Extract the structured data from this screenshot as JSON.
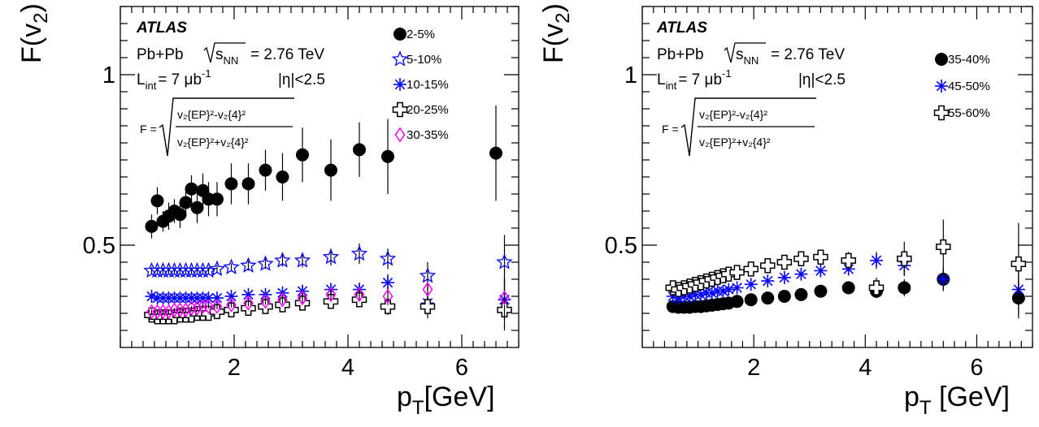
{
  "panels": [
    {
      "ylabel": "F(v",
      "ylabel_sub": "2",
      "ylabel_close": ")",
      "xlabel": "p",
      "xlabel_sub": "T",
      "xlabel_unit": "[GeV]",
      "atlas": "ATLAS",
      "system": "Pb+Pb",
      "sqrt": "s",
      "sqrt_sub": "NN",
      "energy": "= 2.76 TeV",
      "lumi": "L",
      "lumi_sub": "int",
      "lumi_val": "= 7 μb",
      "lumi_sup": "-1",
      "eta": "|η|<2.5",
      "formula_F": "F =",
      "formula_num": "v₂{EP}²-v₂{4}²",
      "formula_den": "v₂{EP}²+v₂{4}²",
      "xticks": [
        "2",
        "4",
        "6"
      ],
      "yticks": [
        "0.5",
        "1"
      ]
    },
    {
      "ylabel": "F(v",
      "ylabel_sub": "2",
      "ylabel_close": ")",
      "xlabel": "p",
      "xlabel_sub": "T",
      "xlabel_unit": " [GeV]",
      "atlas": "ATLAS",
      "system": "Pb+Pb",
      "sqrt": "s",
      "sqrt_sub": "NN",
      "energy": "= 2.76 TeV",
      "lumi": "L",
      "lumi_sub": "int",
      "lumi_val": "= 7 μb",
      "lumi_sup": "-1",
      "eta": "|η|<2.5",
      "formula_F": "F =",
      "formula_num": "v₂{EP}²-v₂{4}²",
      "formula_den": "v₂{EP}²+v₂{4}²",
      "xticks": [
        "2",
        "4",
        "6"
      ],
      "yticks": [
        "0.5",
        "1"
      ]
    }
  ],
  "chart_data": [
    {
      "type": "scatter",
      "xlim": [
        0.0,
        7.0
      ],
      "ylim": [
        0.2,
        1.2
      ],
      "grid": false,
      "legend_placement": "top-right",
      "series": [
        {
          "name": "2-5%",
          "marker": "filled-circle",
          "color": "#000000",
          "x": [
            0.55,
            0.65,
            0.75,
            0.85,
            0.95,
            1.05,
            1.15,
            1.25,
            1.35,
            1.45,
            1.55,
            1.7,
            1.95,
            2.25,
            2.55,
            2.85,
            3.2,
            3.7,
            4.2,
            4.7,
            6.6
          ],
          "y": [
            0.555,
            0.63,
            0.57,
            0.585,
            0.6,
            0.59,
            0.625,
            0.665,
            0.61,
            0.66,
            0.635,
            0.635,
            0.68,
            0.68,
            0.72,
            0.7,
            0.765,
            0.72,
            0.78,
            0.76,
            0.77
          ],
          "err": [
            0.035,
            0.04,
            0.03,
            0.04,
            0.035,
            0.04,
            0.04,
            0.04,
            0.045,
            0.05,
            0.05,
            0.05,
            0.06,
            0.06,
            0.06,
            0.07,
            0.08,
            0.09,
            0.08,
            0.11,
            0.14
          ]
        },
        {
          "name": "5-10%",
          "marker": "open-star",
          "color": "#0000ff",
          "x": [
            0.55,
            0.65,
            0.75,
            0.85,
            0.95,
            1.05,
            1.15,
            1.25,
            1.35,
            1.45,
            1.55,
            1.7,
            1.95,
            2.25,
            2.55,
            2.85,
            3.2,
            3.7,
            4.2,
            4.7,
            5.4,
            6.75
          ],
          "y": [
            0.425,
            0.425,
            0.425,
            0.425,
            0.425,
            0.425,
            0.425,
            0.425,
            0.425,
            0.425,
            0.425,
            0.43,
            0.435,
            0.44,
            0.445,
            0.455,
            0.455,
            0.465,
            0.475,
            0.46,
            0.41,
            0.45
          ],
          "err": [
            0.01,
            0.01,
            0.01,
            0.01,
            0.01,
            0.01,
            0.01,
            0.01,
            0.01,
            0.01,
            0.01,
            0.012,
            0.012,
            0.015,
            0.015,
            0.018,
            0.02,
            0.025,
            0.03,
            0.03,
            0.04,
            0.08
          ]
        },
        {
          "name": "10-15%",
          "marker": "asterisk",
          "color": "#0000ff",
          "x": [
            0.55,
            0.65,
            0.75,
            0.85,
            0.95,
            1.05,
            1.15,
            1.25,
            1.35,
            1.45,
            1.55,
            1.7,
            1.95,
            2.25,
            2.55,
            2.85,
            3.2,
            3.7,
            4.2,
            4.7,
            5.4,
            6.75
          ],
          "y": [
            0.35,
            0.345,
            0.345,
            0.345,
            0.345,
            0.345,
            0.345,
            0.345,
            0.345,
            0.345,
            0.345,
            0.345,
            0.35,
            0.355,
            0.355,
            0.36,
            0.365,
            0.37,
            0.37,
            0.39,
            0.33,
            0.34
          ],
          "err": [
            0.008,
            0.008,
            0.008,
            0.008,
            0.008,
            0.008,
            0.008,
            0.008,
            0.008,
            0.008,
            0.008,
            0.008,
            0.01,
            0.01,
            0.012,
            0.012,
            0.015,
            0.018,
            0.02,
            0.025,
            0.03,
            0.06
          ]
        },
        {
          "name": "20-25%",
          "marker": "open-cross",
          "color": "#000000",
          "x": [
            0.55,
            0.65,
            0.75,
            0.85,
            0.95,
            1.05,
            1.15,
            1.25,
            1.35,
            1.45,
            1.55,
            1.7,
            1.95,
            2.25,
            2.55,
            2.85,
            3.2,
            3.7,
            4.2,
            4.7,
            5.4,
            6.75
          ],
          "y": [
            0.295,
            0.29,
            0.29,
            0.29,
            0.29,
            0.295,
            0.295,
            0.295,
            0.3,
            0.3,
            0.3,
            0.305,
            0.31,
            0.315,
            0.32,
            0.325,
            0.33,
            0.335,
            0.34,
            0.32,
            0.32,
            0.31
          ],
          "err": [
            0.008,
            0.008,
            0.008,
            0.008,
            0.008,
            0.008,
            0.008,
            0.008,
            0.008,
            0.008,
            0.008,
            0.008,
            0.01,
            0.01,
            0.012,
            0.012,
            0.015,
            0.018,
            0.02,
            0.025,
            0.035,
            0.06
          ]
        },
        {
          "name": "30-35%",
          "marker": "open-diamond",
          "color": "#ff00ff",
          "x": [
            0.55,
            0.65,
            0.75,
            0.85,
            0.95,
            1.05,
            1.15,
            1.25,
            1.35,
            1.45,
            1.55,
            1.7,
            1.95,
            2.25,
            2.55,
            2.85,
            3.2,
            3.7,
            4.2,
            4.7,
            5.4,
            6.75
          ],
          "y": [
            0.305,
            0.305,
            0.305,
            0.305,
            0.31,
            0.31,
            0.31,
            0.315,
            0.315,
            0.32,
            0.32,
            0.32,
            0.325,
            0.33,
            0.335,
            0.34,
            0.345,
            0.355,
            0.355,
            0.35,
            0.37,
            0.345
          ],
          "err": [
            0.006,
            0.006,
            0.006,
            0.006,
            0.006,
            0.006,
            0.006,
            0.006,
            0.006,
            0.006,
            0.006,
            0.008,
            0.008,
            0.01,
            0.01,
            0.012,
            0.015,
            0.015,
            0.02,
            0.025,
            0.03,
            0.06
          ]
        }
      ]
    },
    {
      "type": "scatter",
      "xlim": [
        0.0,
        7.0
      ],
      "ylim": [
        0.2,
        1.2
      ],
      "grid": false,
      "legend_placement": "top-right",
      "series": [
        {
          "name": "35-40%",
          "marker": "filled-circle",
          "color": "#000000",
          "x": [
            0.55,
            0.65,
            0.75,
            0.85,
            0.95,
            1.05,
            1.15,
            1.25,
            1.35,
            1.45,
            1.55,
            1.7,
            1.95,
            2.25,
            2.55,
            2.85,
            3.2,
            3.7,
            4.2,
            4.7,
            5.4,
            6.75
          ],
          "y": [
            0.32,
            0.318,
            0.318,
            0.318,
            0.32,
            0.32,
            0.322,
            0.324,
            0.326,
            0.328,
            0.33,
            0.335,
            0.34,
            0.345,
            0.35,
            0.355,
            0.365,
            0.375,
            0.365,
            0.375,
            0.4,
            0.345
          ],
          "err": [
            0.005,
            0.005,
            0.005,
            0.005,
            0.005,
            0.005,
            0.005,
            0.005,
            0.005,
            0.005,
            0.005,
            0.006,
            0.006,
            0.008,
            0.008,
            0.01,
            0.012,
            0.015,
            0.02,
            0.025,
            0.03,
            0.06
          ]
        },
        {
          "name": "45-50%",
          "marker": "asterisk",
          "color": "#0000ff",
          "x": [
            0.55,
            0.65,
            0.75,
            0.85,
            0.95,
            1.05,
            1.15,
            1.25,
            1.35,
            1.45,
            1.55,
            1.7,
            1.95,
            2.25,
            2.55,
            2.85,
            3.2,
            3.7,
            4.2,
            4.7,
            5.4,
            6.75
          ],
          "y": [
            0.35,
            0.345,
            0.35,
            0.35,
            0.355,
            0.355,
            0.36,
            0.36,
            0.365,
            0.365,
            0.37,
            0.375,
            0.385,
            0.395,
            0.405,
            0.415,
            0.425,
            0.43,
            0.455,
            0.44,
            0.4,
            0.37
          ],
          "err": [
            0.006,
            0.006,
            0.006,
            0.006,
            0.006,
            0.006,
            0.006,
            0.006,
            0.006,
            0.006,
            0.006,
            0.008,
            0.008,
            0.01,
            0.01,
            0.012,
            0.015,
            0.018,
            0.025,
            0.03,
            0.035,
            0.07
          ]
        },
        {
          "name": "55-60%",
          "marker": "open-cross",
          "color": "#000000",
          "x": [
            0.55,
            0.65,
            0.75,
            0.85,
            0.95,
            1.05,
            1.15,
            1.25,
            1.35,
            1.45,
            1.55,
            1.7,
            1.95,
            2.25,
            2.55,
            2.85,
            3.2,
            3.7,
            4.2,
            4.7,
            5.4,
            6.75
          ],
          "y": [
            0.375,
            0.37,
            0.375,
            0.38,
            0.385,
            0.39,
            0.395,
            0.4,
            0.405,
            0.41,
            0.415,
            0.42,
            0.43,
            0.44,
            0.45,
            0.46,
            0.465,
            0.455,
            0.375,
            0.46,
            0.495,
            0.445
          ],
          "err": [
            0.006,
            0.006,
            0.006,
            0.006,
            0.006,
            0.006,
            0.006,
            0.006,
            0.006,
            0.006,
            0.006,
            0.008,
            0.01,
            0.012,
            0.014,
            0.016,
            0.02,
            0.025,
            0.03,
            0.05,
            0.08,
            0.12
          ]
        }
      ]
    }
  ]
}
